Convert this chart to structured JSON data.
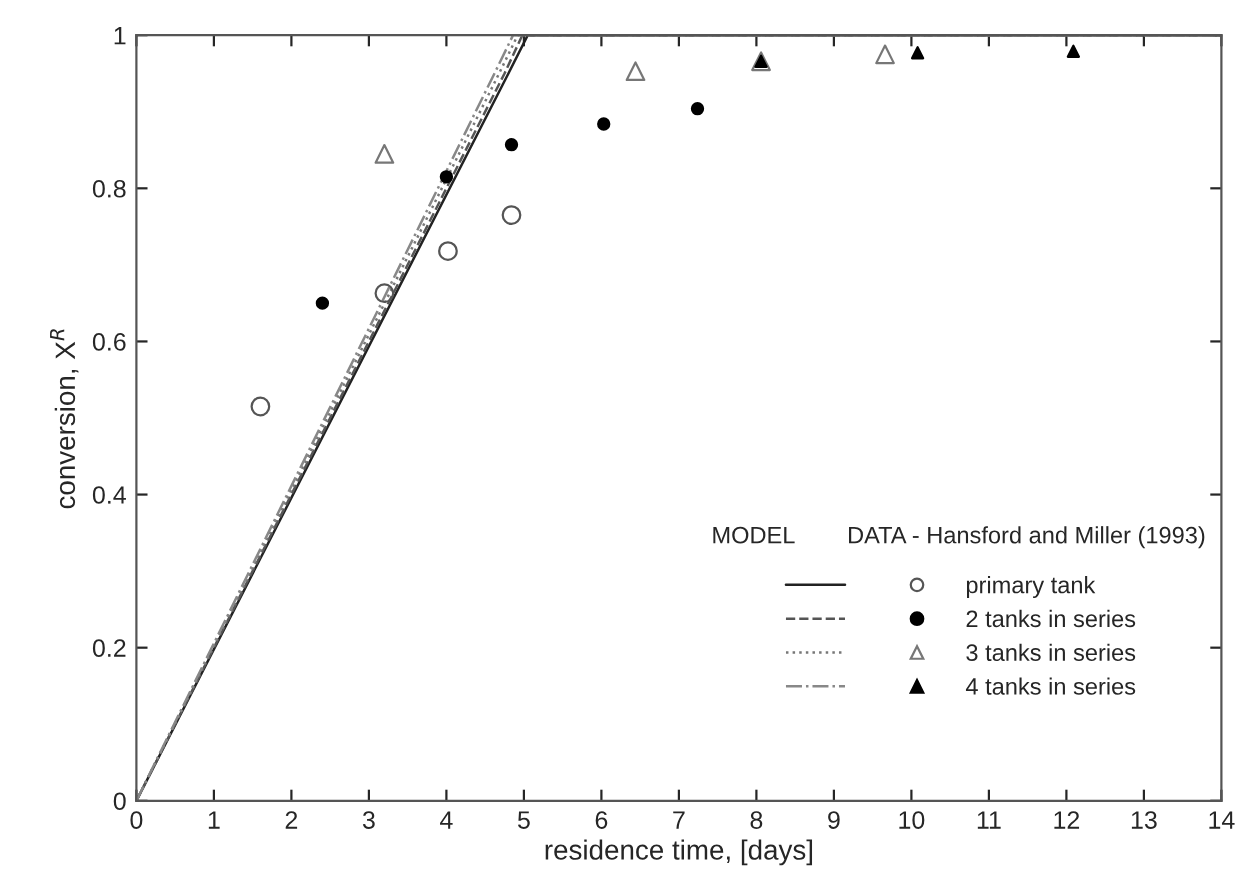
{
  "chart_data": {
    "type": "line",
    "xlabel": "residence time, [days]",
    "ylabel": "conversion, X$^{R}$",
    "xlim": [
      0,
      14
    ],
    "ylim": [
      0,
      1
    ],
    "xticks": [
      0,
      1,
      2,
      3,
      4,
      5,
      6,
      7,
      8,
      9,
      10,
      11,
      12,
      13,
      14
    ],
    "yticks": [
      0,
      0.2,
      0.4,
      0.6,
      0.8,
      1
    ],
    "grid": false,
    "legend": "bottom right",
    "annotations": [
      "MODEL",
      "DATA - Hansford and Miller (1993)"
    ],
    "series": [
      {
        "line_style": "solid",
        "color": "#222222",
        "x": [
          0,
          4.8,
          5.05,
          14
        ],
        "values": [
          0,
          0.95,
          1,
          1
        ]
      },
      {
        "line_style": "dashed",
        "color": "#555555",
        "x": [
          0,
          4.75,
          4.98,
          14
        ],
        "values": [
          0,
          0.95,
          1,
          1
        ]
      },
      {
        "line_style": "dotted",
        "color": "#777777",
        "x": [
          0,
          4.68,
          4.92,
          14
        ],
        "values": [
          0,
          0.95,
          1,
          1
        ]
      },
      {
        "line_style": "dashdot",
        "color": "#888888",
        "x": [
          0,
          4.62,
          4.86,
          14
        ],
        "values": [
          0,
          0.95,
          1,
          1
        ]
      },
      {
        "type": "scatter",
        "name": "primary tank",
        "marker": "circle",
        "color": "#555555",
        "x": [
          1.6,
          3.2,
          4.02,
          4.84
        ],
        "values": [
          0.515,
          0.663,
          0.718,
          0.765
        ]
      },
      {
        "type": "scatter",
        "name": "2 tanks in series",
        "marker": "circle",
        "color": "#000000",
        "x": [
          2.4,
          4.0,
          4.84,
          6.03,
          7.24
        ],
        "values": [
          0.65,
          0.815,
          0.857,
          0.884,
          0.904
        ]
      },
      {
        "type": "scatter",
        "name": "3 tanks in series",
        "marker": "triangle",
        "color": "#777777",
        "x": [
          3.2,
          6.44,
          8.06,
          9.66
        ],
        "values": [
          0.845,
          0.953,
          0.966,
          0.975
        ]
      },
      {
        "type": "scatter",
        "name": "4 tanks in series",
        "marker": "triangle",
        "color": "#000000",
        "x": [
          8.06,
          10.08,
          12.09
        ],
        "values": [
          0.966,
          0.977,
          0.979
        ]
      }
    ]
  }
}
